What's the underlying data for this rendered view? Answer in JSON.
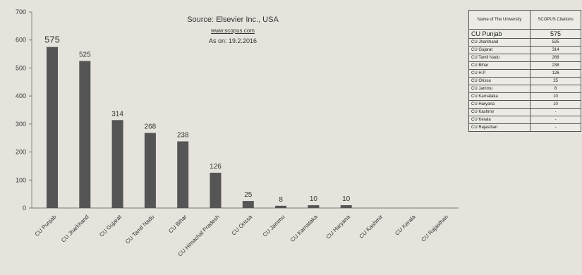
{
  "chart_data": {
    "type": "bar",
    "categories": [
      "CU Punjab",
      "CU Jharkhand",
      "CU Gujarat",
      "CU Tamil Nadu",
      "CU Bihar",
      "CU Himachal Pradesh",
      "CU Orissa",
      "CU Jammu",
      "CU Karnataka",
      "CU Haryana",
      "CU Kashmir",
      "CU Kerala",
      "CU Rajasthan"
    ],
    "values": [
      575,
      525,
      314,
      268,
      238,
      126,
      25,
      8,
      10,
      10,
      0,
      0,
      0
    ],
    "value_labels": [
      "575",
      "525",
      "314",
      "268",
      "238",
      "126",
      "25",
      "8",
      "10",
      "10",
      "",
      "",
      ""
    ],
    "yticks": [
      "700",
      "600",
      "500",
      "400",
      "300",
      "200",
      "100",
      "0"
    ],
    "ylim": [
      0,
      700
    ],
    "bar_color": "#555555",
    "source_title": "Source: Elsevier Inc., USA",
    "source_url": "www.scopus.com",
    "source_date": "As on: 19.2.2016"
  },
  "table": {
    "headers": [
      "Name of The University",
      "SCOPUS Citations"
    ],
    "rows": [
      [
        "CU Punjab",
        "575"
      ],
      [
        "CU Jharkhand",
        "525"
      ],
      [
        "CU Gujarat",
        "314"
      ],
      [
        "CU Tamil Nadu",
        "268"
      ],
      [
        "CU Bihar",
        "238"
      ],
      [
        "CU H.P",
        "126"
      ],
      [
        "CU Orissa",
        "25"
      ],
      [
        "CU Jammu",
        "8"
      ],
      [
        "CU Karnataka",
        "10"
      ],
      [
        "CU Haryana",
        "10"
      ],
      [
        "CU Kashmir",
        "-"
      ],
      [
        "CU Kerala",
        "-"
      ],
      [
        "CU Rajasthan",
        "-"
      ]
    ]
  }
}
